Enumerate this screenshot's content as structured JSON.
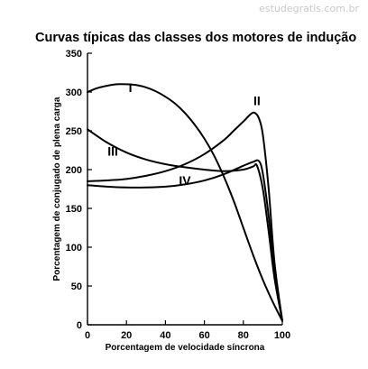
{
  "watermark": "estudegratis.com.br",
  "chart_data": {
    "type": "line",
    "title": "Curvas típicas das classes dos motores de indução",
    "xlabel": "Porcentagem de velocidade síncrona",
    "ylabel": "Porcentagem de conjugado de plena carga",
    "xlim": [
      0,
      100
    ],
    "ylim": [
      0,
      350
    ],
    "x_ticks": [
      "0",
      "20",
      "40",
      "60",
      "80",
      "100"
    ],
    "y_ticks": [
      "0",
      "50",
      "100",
      "150",
      "200",
      "250",
      "300",
      "350"
    ],
    "grid": false,
    "series": [
      {
        "name": "I",
        "label_pos": [
          22,
          300
        ],
        "x": [
          0,
          5,
          10,
          15,
          20,
          25,
          30,
          35,
          40,
          45,
          50,
          55,
          60,
          65,
          70,
          75,
          80,
          85,
          90,
          95,
          100
        ],
        "y": [
          300,
          305,
          308,
          310,
          310,
          309,
          306,
          301,
          294,
          285,
          273,
          258,
          240,
          218,
          191,
          160,
          125,
          90,
          58,
          30,
          5
        ]
      },
      {
        "name": "II",
        "label_pos": [
          87,
          283
        ],
        "x": [
          0,
          10,
          20,
          30,
          40,
          50,
          60,
          70,
          75,
          80,
          84,
          86,
          88,
          90,
          93,
          96,
          100
        ],
        "y": [
          185,
          186,
          188,
          192,
          198,
          207,
          220,
          238,
          250,
          262,
          272,
          273,
          266,
          245,
          175,
          80,
          5
        ]
      },
      {
        "name": "III",
        "label_pos": [
          13,
          218
        ],
        "x": [
          0,
          10,
          20,
          30,
          40,
          50,
          60,
          70,
          80,
          85,
          87,
          90,
          93,
          96,
          100
        ],
        "y": [
          252,
          235,
          222,
          213,
          207,
          203,
          200,
          198,
          200,
          204,
          205,
          175,
          120,
          60,
          5
        ]
      },
      {
        "name": "IV",
        "label_pos": [
          50,
          180
        ],
        "x": [
          0,
          10,
          20,
          30,
          40,
          50,
          60,
          70,
          80,
          85,
          88,
          90,
          93,
          96,
          100
        ],
        "y": [
          180,
          178,
          177,
          177,
          178,
          181,
          186,
          194,
          205,
          210,
          211,
          195,
          140,
          70,
          5
        ]
      }
    ]
  }
}
